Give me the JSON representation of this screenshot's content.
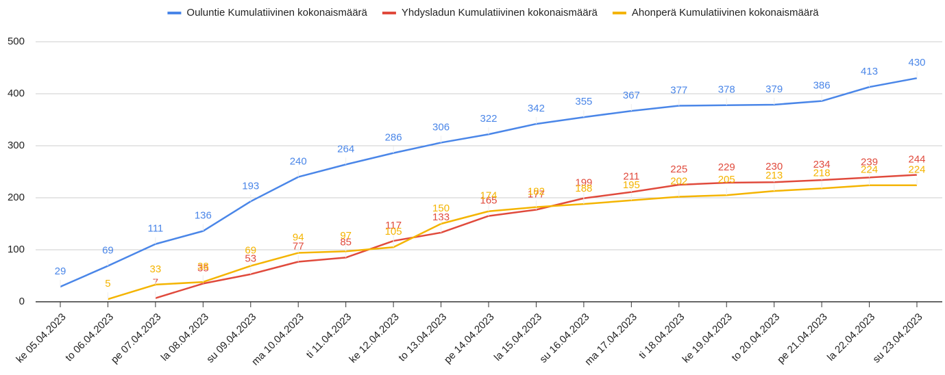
{
  "chart_data": {
    "type": "line",
    "categories": [
      "ke 05.04.2023",
      "to 06.04.2023",
      "pe 07.04.2023",
      "la 08.04.2023",
      "su 09.04.2023",
      "ma 10.04.2023",
      "ti 11.04.2023",
      "ke 12.04.2023",
      "to 13.04.2023",
      "pe 14.04.2023",
      "la 15.04.2023",
      "su 16.04.2023",
      "ma 17.04.2023",
      "ti 18.04.2023",
      "ke 19.04.2023",
      "to 20.04.2023",
      "pe 21.04.2023",
      "la 22.04.2023",
      "su 23.04.2023"
    ],
    "series": [
      {
        "name": "Ouluntie Kumulatiivinen kokonaismäärä",
        "color": "#4a86e8",
        "values": [
          29,
          69,
          111,
          136,
          193,
          240,
          264,
          286,
          306,
          322,
          342,
          355,
          367,
          377,
          378,
          379,
          386,
          413,
          430
        ]
      },
      {
        "name": "Yhdysladun Kumulatiivinen kokonaismäärä",
        "color": "#e04a3c",
        "values": [
          null,
          null,
          7,
          35,
          53,
          77,
          85,
          117,
          133,
          165,
          177,
          199,
          211,
          225,
          229,
          230,
          234,
          239,
          244
        ]
      },
      {
        "name": "Ahonperä Kumulatiivinen kokonaismäärä",
        "color": "#f4b400",
        "values": [
          null,
          5,
          33,
          38,
          69,
          94,
          97,
          105,
          150,
          174,
          182,
          188,
          195,
          202,
          205,
          213,
          218,
          224,
          224
        ]
      }
    ],
    "ylim": [
      0,
      500
    ],
    "yticks": [
      0,
      100,
      200,
      300,
      400,
      500
    ],
    "grid": true,
    "legend": "top"
  }
}
